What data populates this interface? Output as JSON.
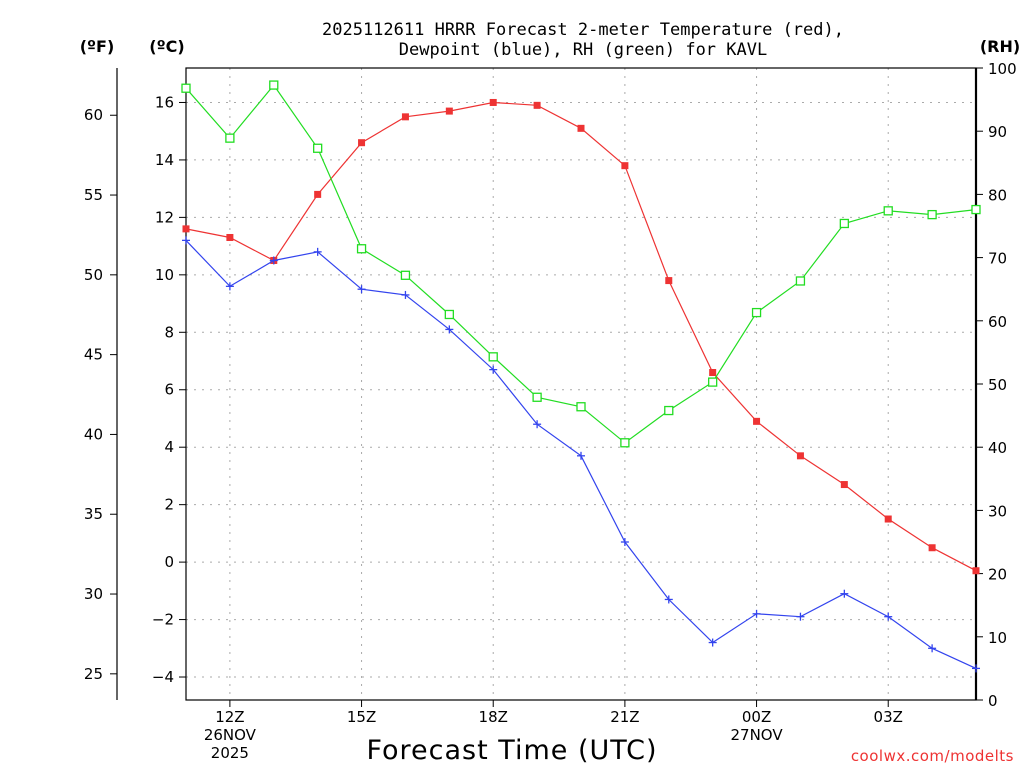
{
  "chart_data": {
    "type": "line",
    "title_lines": [
      "2025112611 HRRR Forecast 2-meter Temperature (red),",
      "Dewpoint (blue), RH (green) for KAVL"
    ],
    "xlabel": "Forecast Time (UTC)",
    "credit": "coolwx.com/modelts",
    "unit_labels": {
      "fahrenheit": "(ºF)",
      "celsius": "(ºC)",
      "rh": "(RH)"
    },
    "x_hours": [
      11,
      12,
      13,
      14,
      15,
      16,
      17,
      18,
      19,
      20,
      21,
      22,
      23,
      24,
      25,
      26,
      27,
      28,
      29
    ],
    "x_ticks": [
      {
        "hour": 12,
        "lines": [
          "12Z",
          "26NOV",
          "2025"
        ]
      },
      {
        "hour": 15,
        "lines": [
          "15Z"
        ]
      },
      {
        "hour": 18,
        "lines": [
          "18Z"
        ]
      },
      {
        "hour": 21,
        "lines": [
          "21Z"
        ]
      },
      {
        "hour": 24,
        "lines": [
          "00Z",
          "27NOV"
        ]
      },
      {
        "hour": 27,
        "lines": [
          "03Z"
        ]
      }
    ],
    "celsius_axis": {
      "min": -4.8,
      "max": 17.2,
      "ticks": [
        -4,
        -2,
        0,
        2,
        4,
        6,
        8,
        10,
        12,
        14,
        16
      ]
    },
    "fahrenheit_ticks": [
      25,
      30,
      35,
      40,
      45,
      50,
      55,
      60
    ],
    "rh_axis": {
      "min": 0,
      "max": 100,
      "ticks": [
        0,
        10,
        20,
        30,
        40,
        50,
        60,
        70,
        80,
        90,
        100
      ]
    },
    "series": [
      {
        "name": "2-meter Temperature",
        "axis": "celsius",
        "color": "#ee3333",
        "marker": "filled-square",
        "values": [
          11.6,
          11.3,
          10.5,
          12.8,
          14.6,
          15.5,
          15.7,
          16.0,
          15.9,
          15.1,
          13.8,
          9.8,
          6.6,
          4.9,
          3.7,
          2.7,
          1.5,
          0.5,
          -0.3
        ]
      },
      {
        "name": "Dewpoint",
        "axis": "celsius",
        "color": "#3344ee",
        "marker": "plus",
        "values": [
          11.2,
          9.6,
          10.5,
          10.8,
          9.5,
          9.3,
          8.1,
          6.7,
          4.8,
          3.7,
          0.7,
          -1.3,
          -2.8,
          -1.8,
          -1.9,
          -1.1,
          -1.9,
          -3.0,
          -3.7
        ]
      },
      {
        "name": "RH",
        "axis": "rh",
        "color": "#22dd22",
        "marker": "open-square",
        "values": [
          96.8,
          88.9,
          97.3,
          87.3,
          71.4,
          67.2,
          61.0,
          54.3,
          47.9,
          46.4,
          40.7,
          45.8,
          50.3,
          61.3,
          66.3,
          75.4,
          77.4,
          76.8,
          77.6
        ]
      }
    ]
  }
}
